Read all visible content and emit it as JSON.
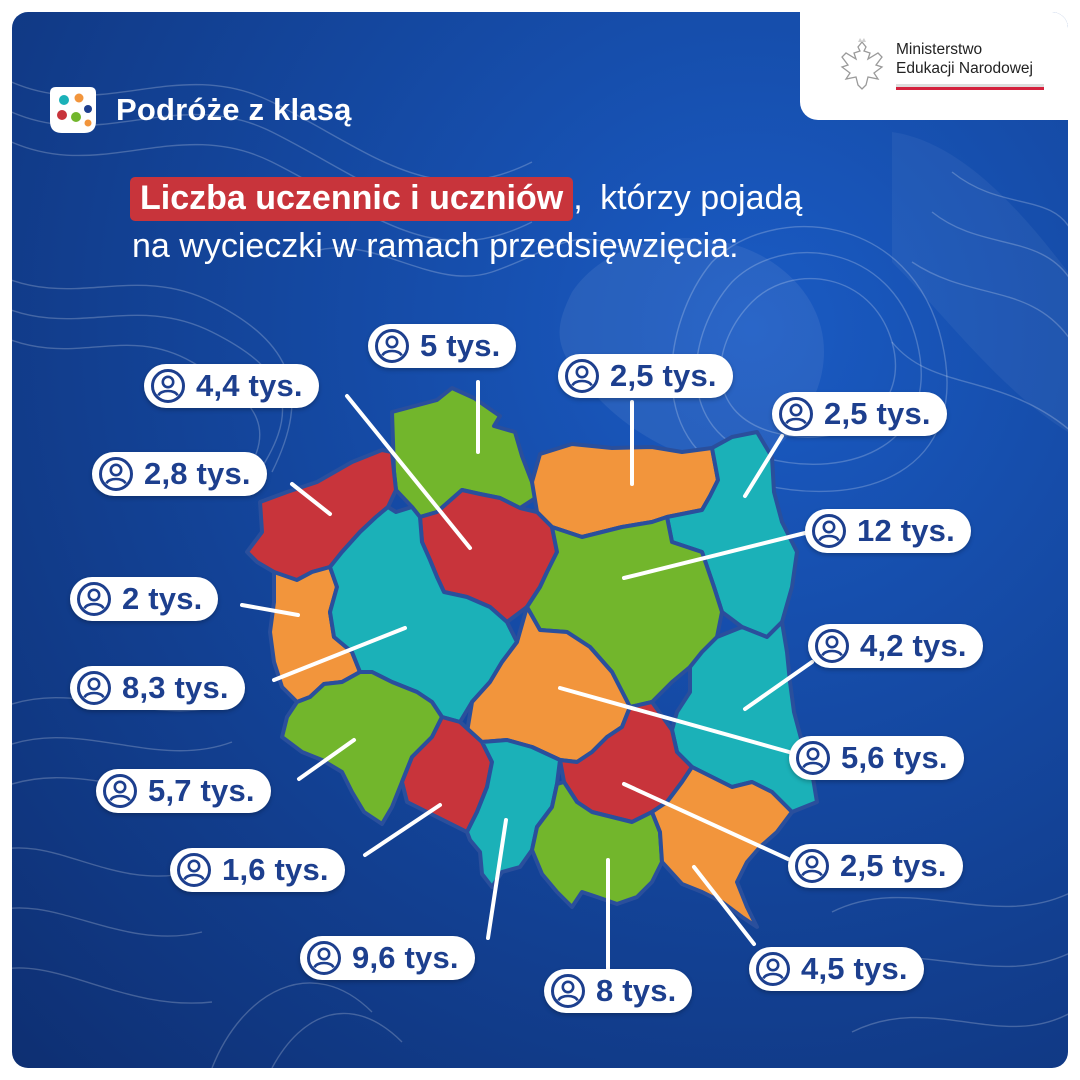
{
  "brand": {
    "name": "Podróże z klasą"
  },
  "ministry": {
    "line1": "Ministerstwo",
    "line2": "Edukacji Narodowej"
  },
  "headline": {
    "highlight": "Liczba uczennic i uczniów",
    "comma": ",",
    "rest_line1": "którzy pojadą",
    "line2": "na wycieczki w ramach przedsięwzięcia:"
  },
  "colors": {
    "green": "#72b62c",
    "red": "#c8343b",
    "orange": "#f2953c",
    "teal": "#1bb1b8",
    "text_blue": "#1d3f8e",
    "background": "#14479f"
  },
  "icons": {
    "brand": "colorful-dots-logo",
    "ministry": "polish-eagle-emblem",
    "value_marker": "person-circle-icon"
  },
  "regions": [
    {
      "id": "pomorskie",
      "value": "5 tys."
    },
    {
      "id": "warminsko-mazurskie",
      "value": "2,5 tys."
    },
    {
      "id": "podlaskie",
      "value": "2,5 tys."
    },
    {
      "id": "zachodniopomorskie",
      "value": "2,8 tys."
    },
    {
      "id": "kujawsko-pomorskie",
      "value": "4,4 tys."
    },
    {
      "id": "mazowieckie",
      "value": "12 tys."
    },
    {
      "id": "lubuskie",
      "value": "2 tys."
    },
    {
      "id": "wielkopolskie",
      "value": "8,3 tys."
    },
    {
      "id": "lodzkie",
      "value": "5,6 tys."
    },
    {
      "id": "lubelskie",
      "value": "4,2 tys."
    },
    {
      "id": "dolnoslaskie",
      "value": "5,7 tys."
    },
    {
      "id": "opolskie",
      "value": "1,6 tys."
    },
    {
      "id": "slaskie",
      "value": "9,6 tys."
    },
    {
      "id": "swietokrzyskie",
      "value": "2,5 tys."
    },
    {
      "id": "malopolskie",
      "value": "8 tys."
    },
    {
      "id": "podkarpackie",
      "value": "4,5 tys."
    }
  ]
}
